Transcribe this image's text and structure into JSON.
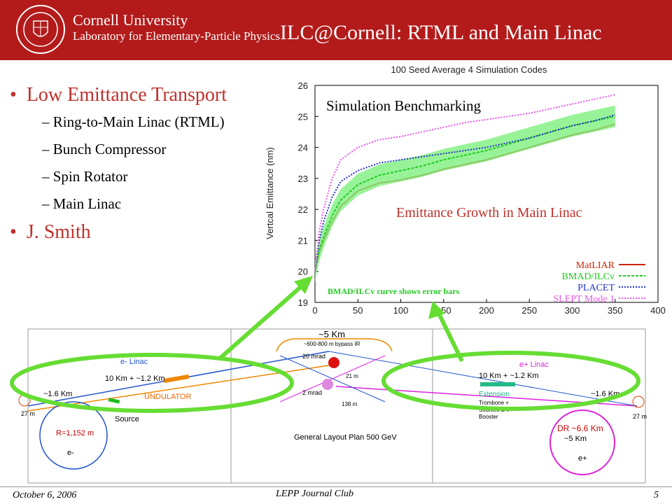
{
  "header": {
    "university": "Cornell University",
    "laboratory": "Laboratory for Elementary-Particle Physics",
    "title": "ILC@Cornell: RTML and Main Linac",
    "colors": {
      "header_bg": "#b31b1b"
    }
  },
  "bullets": [
    {
      "text": "Low Emittance Transport",
      "sub": [
        "Ring-to-Main Linac (RTML)",
        "Bunch Compressor",
        "Spin Rotator",
        "Main Linac"
      ]
    },
    {
      "text": "J. Smith",
      "sub": []
    }
  ],
  "chart_data": {
    "type": "line",
    "title": "100 Seed Average 4 Simulation Codes",
    "xlabel": "",
    "ylabel": "Vertcal Emittance (nm)",
    "xlim": [
      0,
      400
    ],
    "ylim": [
      19,
      26
    ],
    "xticks": [
      0,
      50,
      100,
      150,
      200,
      250,
      300,
      350,
      400
    ],
    "yticks": [
      19,
      20,
      21,
      22,
      23,
      24,
      25,
      26
    ],
    "grid": false,
    "legend_position": "bottom-right",
    "annotations": {
      "top_left": "Simulation Benchmarking",
      "middle_right": "Emittance Growth in Main Linac",
      "bottom": "BMAD/ILCv curve shows error bars"
    },
    "series": [
      {
        "name": "MatLIAR",
        "color": "#cc2200",
        "x": [
          0,
          5,
          10,
          20,
          30,
          50,
          75,
          100,
          125,
          150,
          175,
          200,
          225,
          250,
          275,
          300,
          325,
          350
        ],
        "y": [
          20.0,
          20.6,
          21.0,
          21.6,
          22.1,
          22.6,
          22.85,
          22.95,
          23.1,
          23.3,
          23.45,
          23.6,
          23.8,
          24.0,
          24.2,
          24.4,
          24.55,
          24.75
        ]
      },
      {
        "name": "BMAD/ILCv",
        "color": "#22cc22",
        "x": [
          0,
          5,
          10,
          20,
          30,
          50,
          75,
          100,
          125,
          150,
          175,
          200,
          225,
          250,
          275,
          300,
          325,
          350
        ],
        "y": [
          20.0,
          20.7,
          21.1,
          21.8,
          22.3,
          22.8,
          23.1,
          23.25,
          23.4,
          23.6,
          23.75,
          23.9,
          24.1,
          24.3,
          24.5,
          24.7,
          24.85,
          25.0
        ]
      },
      {
        "name": "PLACET",
        "color": "#2233cc",
        "x": [
          0,
          5,
          10,
          20,
          30,
          50,
          75,
          100,
          125,
          150,
          175,
          200,
          225,
          250,
          275,
          300,
          325,
          350
        ],
        "y": [
          20.0,
          21.0,
          21.6,
          22.4,
          22.9,
          23.25,
          23.5,
          23.6,
          23.7,
          23.8,
          23.9,
          24.0,
          24.15,
          24.3,
          24.5,
          24.7,
          24.85,
          25.05
        ]
      },
      {
        "name": "SLEPT Mode 1",
        "color": "#ee55ee",
        "x": [
          0,
          5,
          10,
          20,
          30,
          50,
          75,
          100,
          125,
          150,
          175,
          200,
          225,
          250,
          275,
          300,
          325,
          350
        ],
        "y": [
          20.0,
          21.3,
          22.0,
          23.0,
          23.6,
          24.0,
          24.25,
          24.35,
          24.5,
          24.65,
          24.8,
          24.9,
          25.0,
          25.1,
          25.25,
          25.4,
          25.55,
          25.7
        ]
      }
    ]
  },
  "diagram": {
    "labels": {
      "top_length": "~5 Km",
      "bypass": "~600-800 m bypass IR",
      "mrad20": "20 mrad",
      "mrad2": "2 mrad",
      "m21": "21 m",
      "m138": "138 m",
      "e_linac": "e- Linac",
      "e_linac_len": "10 Km + ~1.2 Km",
      "undulator": "UNDULATOR",
      "left_len": "~1.6 Km",
      "source": "Source",
      "left_27": "27 m",
      "radius": "R=1,152 m",
      "eminus": "e-",
      "plan": "General Layout Plan 500 GeV",
      "p_linac": "e+ Linac",
      "p_linac_len": "10 Km + ~1.2 Km",
      "extension": "Extension",
      "trombone": "Trombone +",
      "sources": "Sources & e+",
      "booster": "Booster",
      "right_len": "~1.6 Km",
      "right_27": "27 m",
      "dr": "DR ~6.6 Km",
      "dr5": "~5 Km",
      "eplus": "e+"
    }
  },
  "footer": {
    "date": "October 6, 2006",
    "club": "LEPP Journal Club",
    "page": "5"
  }
}
